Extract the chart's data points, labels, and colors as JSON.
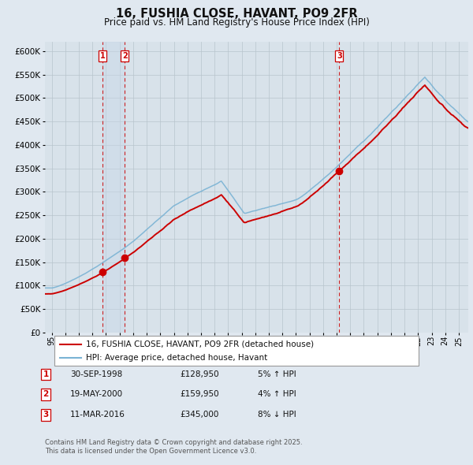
{
  "title": "16, FUSHIA CLOSE, HAVANT, PO9 2FR",
  "subtitle": "Price paid vs. HM Land Registry's House Price Index (HPI)",
  "legend_line1": "16, FUSHIA CLOSE, HAVANT, PO9 2FR (detached house)",
  "legend_line2": "HPI: Average price, detached house, Havant",
  "footer1": "Contains HM Land Registry data © Crown copyright and database right 2025.",
  "footer2": "This data is licensed under the Open Government Licence v3.0.",
  "transactions": [
    {
      "num": "1",
      "date": "30-SEP-1998",
      "price": "£128,950",
      "pct": "5%",
      "dir": "↑",
      "year": 1998.75,
      "value": 128950
    },
    {
      "num": "2",
      "date": "19-MAY-2000",
      "price": "£159,950",
      "pct": "4%",
      "dir": "↑",
      "year": 2000.38,
      "value": 159950
    },
    {
      "num": "3",
      "date": "11-MAR-2016",
      "price": "£345,000",
      "pct": "8%",
      "dir": "↓",
      "year": 2016.19,
      "value": 345000
    }
  ],
  "hpi_color": "#7ab3d4",
  "price_color": "#cc0000",
  "dot_color": "#cc0000",
  "vline_color": "#cc0000",
  "shade_color": "#c8d8e8",
  "grid_color": "#b8c4cc",
  "bg_color": "#e0e8f0",
  "plot_bg": "#d8e2ea",
  "ylim": [
    0,
    620000
  ],
  "yticks": [
    0,
    50000,
    100000,
    150000,
    200000,
    250000,
    300000,
    350000,
    400000,
    450000,
    500000,
    550000,
    600000
  ],
  "xlim_start": 1994.5,
  "xlim_end": 2025.7
}
